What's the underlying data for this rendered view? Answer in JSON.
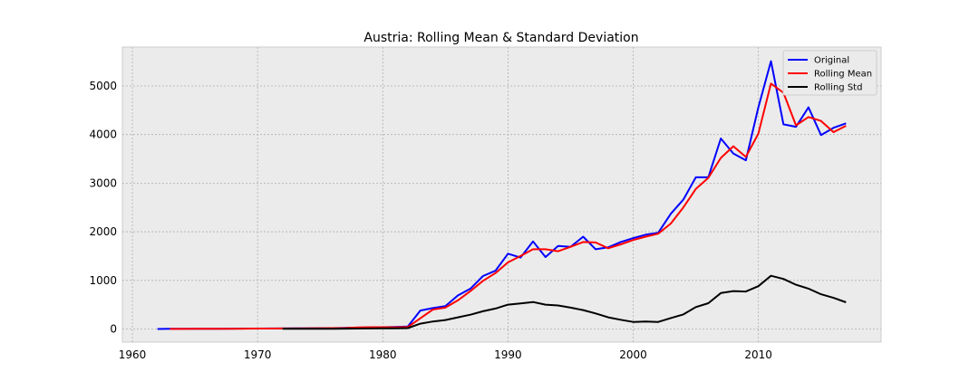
{
  "chart_data": {
    "type": "line",
    "title": "Austria: Rolling Mean & Standard Deviation",
    "xlabel": "",
    "ylabel": "",
    "xlim": [
      1959.2,
      2019.8
    ],
    "ylim": [
      -270,
      5800
    ],
    "xticks": [
      1960,
      1970,
      1980,
      1990,
      2000,
      2010
    ],
    "yticks": [
      0,
      1000,
      2000,
      3000,
      4000,
      5000
    ],
    "grid": true,
    "legend_position": "top-right",
    "series": [
      {
        "name": "Original",
        "color": "#0000ff",
        "points": [
          [
            1962,
            0
          ],
          [
            1963,
            3
          ],
          [
            1964,
            3
          ],
          [
            1965,
            4
          ],
          [
            1966,
            5
          ],
          [
            1967,
            6
          ],
          [
            1968,
            7
          ],
          [
            1969,
            9
          ],
          [
            1970,
            10
          ],
          [
            1971,
            11
          ],
          [
            1972,
            12
          ],
          [
            1973,
            13
          ],
          [
            1974,
            15
          ],
          [
            1975,
            17
          ],
          [
            1976,
            19
          ],
          [
            1977,
            22
          ],
          [
            1978,
            28
          ],
          [
            1979,
            33
          ],
          [
            1980,
            38
          ],
          [
            1981,
            42
          ],
          [
            1982,
            50
          ],
          [
            1983,
            380
          ],
          [
            1984,
            430
          ],
          [
            1985,
            470
          ],
          [
            1986,
            690
          ],
          [
            1987,
            830
          ],
          [
            1988,
            1090
          ],
          [
            1989,
            1200
          ],
          [
            1990,
            1550
          ],
          [
            1991,
            1470
          ],
          [
            1992,
            1800
          ],
          [
            1993,
            1480
          ],
          [
            1994,
            1710
          ],
          [
            1995,
            1690
          ],
          [
            1996,
            1900
          ],
          [
            1997,
            1640
          ],
          [
            1998,
            1680
          ],
          [
            1999,
            1790
          ],
          [
            2000,
            1870
          ],
          [
            2001,
            1940
          ],
          [
            2002,
            1980
          ],
          [
            2003,
            2370
          ],
          [
            2004,
            2660
          ],
          [
            2005,
            3120
          ],
          [
            2006,
            3120
          ],
          [
            2007,
            3920
          ],
          [
            2008,
            3610
          ],
          [
            2009,
            3470
          ],
          [
            2010,
            4560
          ],
          [
            2011,
            5510
          ],
          [
            2012,
            4210
          ],
          [
            2013,
            4160
          ],
          [
            2014,
            4560
          ],
          [
            2015,
            3990
          ],
          [
            2016,
            4140
          ],
          [
            2017,
            4230
          ]
        ]
      },
      {
        "name": "Rolling Mean",
        "color": "#ff0000",
        "points": [
          [
            1963,
            2
          ],
          [
            1964,
            2
          ],
          [
            1965,
            3
          ],
          [
            1966,
            4
          ],
          [
            1967,
            5
          ],
          [
            1968,
            6
          ],
          [
            1969,
            8
          ],
          [
            1970,
            9
          ],
          [
            1971,
            10
          ],
          [
            1972,
            11
          ],
          [
            1973,
            12
          ],
          [
            1974,
            14
          ],
          [
            1975,
            16
          ],
          [
            1976,
            18
          ],
          [
            1977,
            20
          ],
          [
            1978,
            33
          ],
          [
            1979,
            37
          ],
          [
            1980,
            38
          ],
          [
            1981,
            36
          ],
          [
            1982,
            41
          ],
          [
            1983,
            220
          ],
          [
            1984,
            400
          ],
          [
            1985,
            440
          ],
          [
            1986,
            590
          ],
          [
            1987,
            780
          ],
          [
            1988,
            990
          ],
          [
            1989,
            1150
          ],
          [
            1990,
            1370
          ],
          [
            1991,
            1500
          ],
          [
            1992,
            1640
          ],
          [
            1993,
            1640
          ],
          [
            1994,
            1600
          ],
          [
            1995,
            1690
          ],
          [
            1996,
            1790
          ],
          [
            1997,
            1780
          ],
          [
            1998,
            1660
          ],
          [
            1999,
            1740
          ],
          [
            2000,
            1830
          ],
          [
            2001,
            1900
          ],
          [
            2002,
            1960
          ],
          [
            2003,
            2170
          ],
          [
            2004,
            2500
          ],
          [
            2005,
            2880
          ],
          [
            2006,
            3110
          ],
          [
            2007,
            3520
          ],
          [
            2008,
            3760
          ],
          [
            2009,
            3540
          ],
          [
            2010,
            4020
          ],
          [
            2011,
            5050
          ],
          [
            2012,
            4860
          ],
          [
            2013,
            4190
          ],
          [
            2014,
            4360
          ],
          [
            2015,
            4280
          ],
          [
            2016,
            4050
          ],
          [
            2017,
            4180
          ]
        ]
      },
      {
        "name": "Rolling Std",
        "color": "#000000",
        "points": [
          [
            1972,
            4
          ],
          [
            1973,
            4
          ],
          [
            1974,
            5
          ],
          [
            1975,
            5
          ],
          [
            1976,
            6
          ],
          [
            1977,
            7
          ],
          [
            1978,
            9
          ],
          [
            1979,
            12
          ],
          [
            1980,
            14
          ],
          [
            1981,
            15
          ],
          [
            1982,
            18
          ],
          [
            1983,
            110
          ],
          [
            1984,
            155
          ],
          [
            1985,
            185
          ],
          [
            1986,
            240
          ],
          [
            1987,
            295
          ],
          [
            1988,
            365
          ],
          [
            1989,
            420
          ],
          [
            1990,
            500
          ],
          [
            1991,
            525
          ],
          [
            1992,
            555
          ],
          [
            1993,
            500
          ],
          [
            1994,
            485
          ],
          [
            1995,
            440
          ],
          [
            1996,
            390
          ],
          [
            1997,
            320
          ],
          [
            1998,
            240
          ],
          [
            1999,
            190
          ],
          [
            2000,
            145
          ],
          [
            2001,
            155
          ],
          [
            2002,
            145
          ],
          [
            2003,
            225
          ],
          [
            2004,
            300
          ],
          [
            2005,
            450
          ],
          [
            2006,
            530
          ],
          [
            2007,
            740
          ],
          [
            2008,
            780
          ],
          [
            2009,
            770
          ],
          [
            2010,
            880
          ],
          [
            2011,
            1095
          ],
          [
            2012,
            1030
          ],
          [
            2013,
            910
          ],
          [
            2014,
            830
          ],
          [
            2015,
            715
          ],
          [
            2016,
            640
          ],
          [
            2017,
            550
          ]
        ]
      }
    ]
  }
}
